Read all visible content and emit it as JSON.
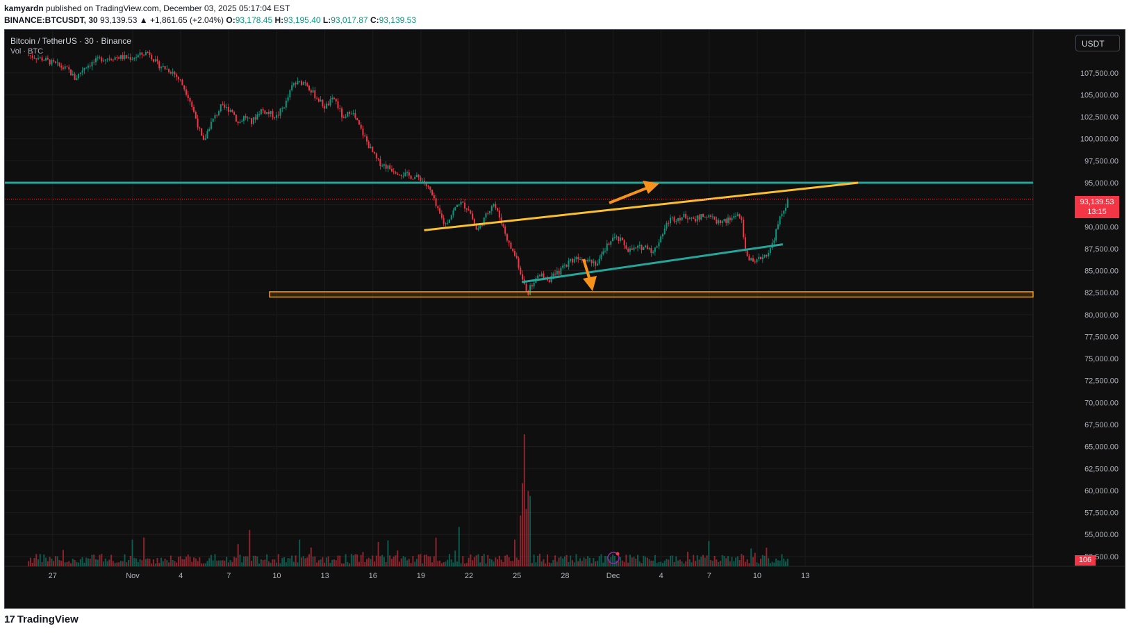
{
  "header": {
    "author": "kamyardn",
    "published_text": "published on TradingView.com, December 03, 2025 05:17:04 EST",
    "symbol": "BINANCE:BTCUSDT, 30",
    "last": "93,139.53",
    "change": "▲ +1,861.65 (+2.04%)",
    "o_label": "O:",
    "o_value": "93,178.45",
    "h_label": "H:",
    "h_value": "93,195.40",
    "l_label": "L:",
    "l_value": "93,017.87",
    "c_label": "C:",
    "c_value": "93,139.53"
  },
  "legend": {
    "title": "Bitcoin / TetherUS · 30 · Binance",
    "volume": "Vol · BTC"
  },
  "currency": "USDT",
  "price_tag": {
    "price": "93,139.53",
    "countdown": "13:15"
  },
  "volume_tag": "106",
  "footer": {
    "logo_text": "TradingView",
    "logo_mark": "17"
  },
  "colors": {
    "background": "#0f0f0f",
    "up": "#089981",
    "down": "#f23645",
    "horizontal_resistance": "#26a69a",
    "trendline_upper": "#fbc02d",
    "trendline_lower": "#26a69a",
    "support_zone": "#ff9800",
    "arrow": "#f7931a"
  },
  "chart_data": {
    "type": "candlestick",
    "symbol": "BINANCE:BTCUSDT",
    "timeframe": "30",
    "ylim": [
      50000,
      111000
    ],
    "y_ticks": [
      "107,500.00",
      "105,000.00",
      "102,500.00",
      "100,000.00",
      "97,500.00",
      "95,000.00",
      "92,500.00",
      "90,000.00",
      "87,500.00",
      "85,000.00",
      "82,500.00",
      "80,000.00",
      "77,500.00",
      "75,000.00",
      "72,500.00",
      "70,000.00",
      "67,500.00",
      "65,000.00",
      "62,500.00",
      "60,000.00",
      "57,500.00",
      "55,000.00",
      "52,500.00"
    ],
    "x_ticks": [
      "27",
      "Nov",
      "4",
      "7",
      "10",
      "13",
      "16",
      "19",
      "22",
      "25",
      "28",
      "Dec",
      "4",
      "7",
      "10",
      "13"
    ],
    "x_tick_days": [
      -5,
      0,
      3,
      6,
      9,
      12,
      15,
      18,
      21,
      24,
      27,
      30,
      33,
      36,
      39,
      42
    ],
    "price_path": [
      [
        -6.5,
        109500
      ],
      [
        -5.5,
        109000
      ],
      [
        -4,
        107800
      ],
      [
        -3.6,
        106800
      ],
      [
        -3,
        108200
      ],
      [
        -2,
        109100
      ],
      [
        -1,
        109300
      ],
      [
        0,
        109200
      ],
      [
        1,
        109900
      ],
      [
        1.5,
        108500
      ],
      [
        2.5,
        107600
      ],
      [
        3,
        106500
      ],
      [
        3.5,
        104800
      ],
      [
        4,
        102000
      ],
      [
        4.4,
        99500
      ],
      [
        4.8,
        101500
      ],
      [
        5.5,
        103600
      ],
      [
        6.2,
        103300
      ],
      [
        6.6,
        101700
      ],
      [
        7,
        102600
      ],
      [
        7.4,
        101800
      ],
      [
        8,
        103300
      ],
      [
        9,
        102500
      ],
      [
        9.6,
        104200
      ],
      [
        10,
        106200
      ],
      [
        10.8,
        106500
      ],
      [
        11.2,
        105300
      ],
      [
        12,
        103600
      ],
      [
        12.6,
        104600
      ],
      [
        13.2,
        102000
      ],
      [
        13.6,
        103400
      ],
      [
        14.2,
        101200
      ],
      [
        14.8,
        99000
      ],
      [
        15.3,
        97400
      ],
      [
        16,
        96700
      ],
      [
        16.6,
        96200
      ],
      [
        17.2,
        95800
      ],
      [
        18,
        95500
      ],
      [
        18.6,
        94000
      ],
      [
        19,
        92000
      ],
      [
        19.5,
        90200
      ],
      [
        20,
        91700
      ],
      [
        20.4,
        92800
      ],
      [
        21,
        92000
      ],
      [
        21.5,
        89500
      ],
      [
        22,
        91000
      ],
      [
        22.5,
        92800
      ],
      [
        23,
        90700
      ],
      [
        23.5,
        88000
      ],
      [
        24,
        86300
      ],
      [
        24.4,
        83500
      ],
      [
        24.7,
        82500
      ],
      [
        25,
        83800
      ],
      [
        25.5,
        84500
      ],
      [
        26,
        84000
      ],
      [
        26.6,
        84800
      ],
      [
        27.2,
        86000
      ],
      [
        27.8,
        86600
      ],
      [
        28.5,
        86300
      ],
      [
        29,
        85800
      ],
      [
        29.4,
        87000
      ],
      [
        29.9,
        88800
      ],
      [
        30.5,
        88400
      ],
      [
        31,
        87300
      ],
      [
        31.6,
        87600
      ],
      [
        32.2,
        87800
      ],
      [
        32.5,
        87000
      ],
      [
        33,
        89000
      ],
      [
        33.5,
        90800
      ],
      [
        34,
        91000
      ],
      [
        34.6,
        91200
      ],
      [
        35.2,
        90900
      ],
      [
        35.8,
        91300
      ],
      [
        36.5,
        90600
      ],
      [
        37.2,
        90700
      ],
      [
        37.8,
        91500
      ],
      [
        38,
        90800
      ],
      [
        38.2,
        87500
      ],
      [
        38.5,
        86400
      ],
      [
        38.8,
        85600
      ],
      [
        39.2,
        86500
      ],
      [
        39.5,
        86800
      ],
      [
        39.8,
        87300
      ],
      [
        40.1,
        89000
      ],
      [
        40.4,
        90800
      ],
      [
        40.7,
        92200
      ],
      [
        41,
        93140
      ]
    ],
    "volume_profile": "approx. 30-minute volume bars, spikes near Nov 21",
    "drawings": {
      "horizontal_resistance": 95000,
      "support_zone": [
        82000,
        82600
      ],
      "upper_trendline": [
        [
          18.2,
          89600
        ],
        [
          45.3,
          95000
        ]
      ],
      "lower_trendline": [
        [
          24.3,
          83700
        ],
        [
          40.6,
          88000
        ]
      ]
    },
    "last_price": 93139.53
  }
}
